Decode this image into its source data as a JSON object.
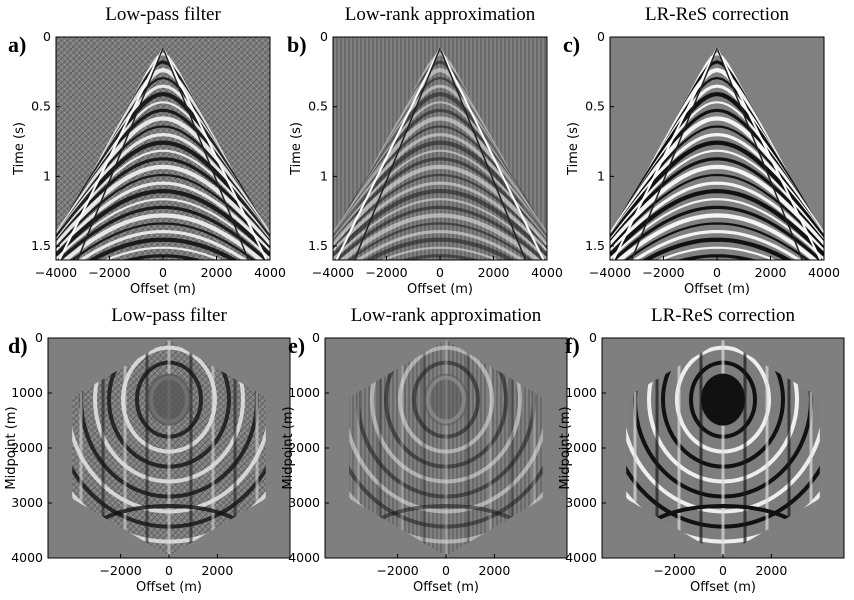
{
  "panels": [
    {
      "label": "a)",
      "title": "Low-pass filter",
      "x_label": "Offset (m)",
      "y_label": "Time (s)",
      "xlim": [
        -4000,
        4000
      ],
      "ylim": [
        0,
        1.6
      ],
      "xticks": [
        {
          "value": -4000,
          "label": "−4000"
        },
        {
          "value": -2000,
          "label": "−2000"
        },
        0,
        2000,
        4000
      ],
      "yticks": [
        0,
        0.5,
        1,
        1.5
      ]
    },
    {
      "label": "b)",
      "title": "Low-rank approximation",
      "x_label": "Offset (m)",
      "y_label": "Time (s)",
      "xlim": [
        -4000,
        4000
      ],
      "ylim": [
        0,
        1.6
      ],
      "xticks": [
        {
          "value": -4000,
          "label": "−4000"
        },
        {
          "value": -2000,
          "label": "−2000"
        },
        0,
        2000,
        4000
      ],
      "yticks": [
        0,
        0.5,
        1,
        1.5
      ]
    },
    {
      "label": "c)",
      "title": "LR-ReS correction",
      "x_label": "Offset (m)",
      "y_label": "Time (s)",
      "xlim": [
        -4000,
        4000
      ],
      "ylim": [
        0,
        1.6
      ],
      "xticks": [
        {
          "value": -4000,
          "label": "−4000"
        },
        {
          "value": -2000,
          "label": "−2000"
        },
        0,
        2000,
        4000
      ],
      "yticks": [
        0,
        0.5,
        1,
        1.5
      ]
    },
    {
      "label": "d)",
      "title": "Low-pass filter",
      "x_label": "Offset (m)",
      "y_label": "Midpoint (m)",
      "xlim": [
        -5000,
        5000
      ],
      "ylim": [
        0,
        4000
      ],
      "xticks": [
        {
          "value": -2000,
          "label": "−2000"
        },
        0,
        2000
      ],
      "yticks": [
        0,
        1000,
        2000,
        3000,
        4000
      ]
    },
    {
      "label": "e)",
      "title": "Low-rank approximation",
      "x_label": "Offset (m)",
      "y_label": "Midpoint (m)",
      "xlim": [
        -5000,
        5000
      ],
      "ylim": [
        0,
        4000
      ],
      "xticks": [
        {
          "value": -2000,
          "label": "−2000"
        },
        0,
        2000
      ],
      "yticks": [
        0,
        1000,
        2000,
        3000,
        4000
      ]
    },
    {
      "label": "f)",
      "title": "LR-ReS correction",
      "x_label": "Offset (m)",
      "y_label": "Midpoint (m)",
      "xlim": [
        -5000,
        5000
      ],
      "ylim": [
        0,
        4000
      ],
      "xticks": [
        {
          "value": -2000,
          "label": "−2000"
        },
        0,
        2000
      ],
      "yticks": [
        0,
        1000,
        2000,
        3000,
        4000
      ]
    }
  ]
}
